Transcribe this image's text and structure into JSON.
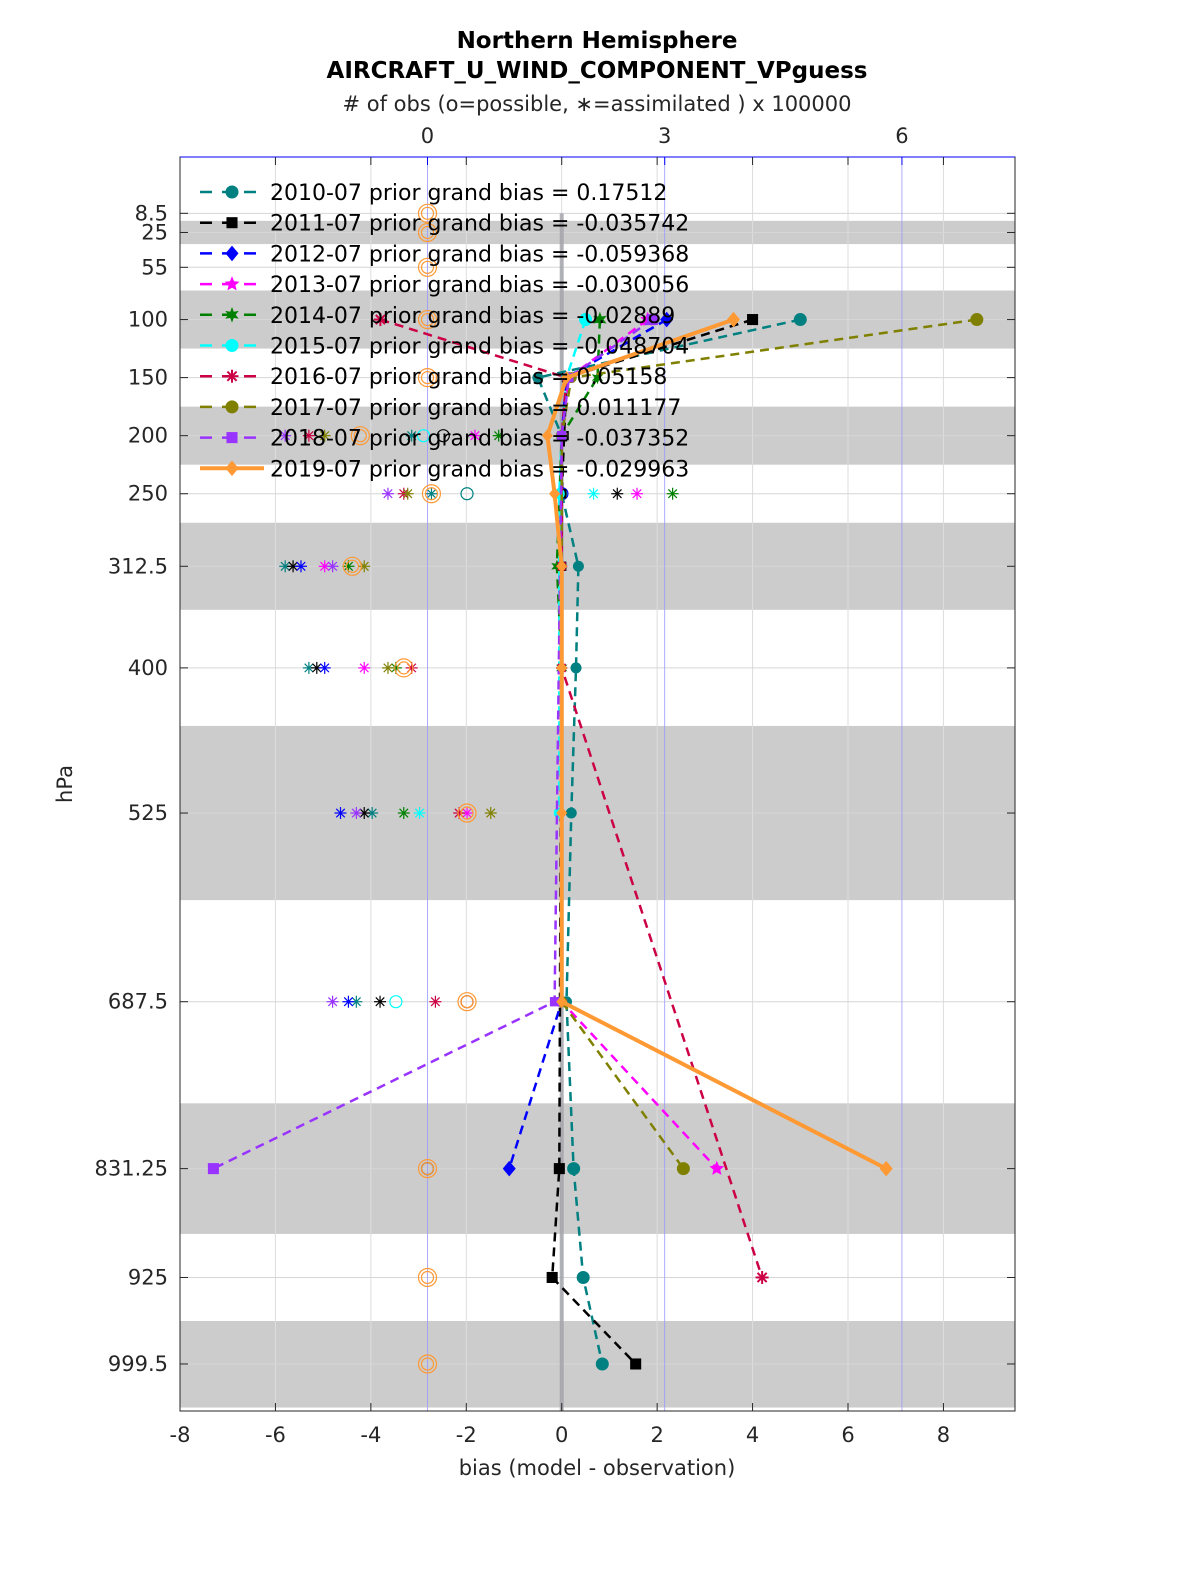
{
  "chart_data": {
    "type": "line",
    "title": "Northern Hemisphere",
    "subtitle": "AIRCRAFT_U_WIND_COMPONENT_VPguess",
    "top_axis_label": "# of obs (o=possible, ∗=assimilated ) x 100000",
    "top_axis_ticks": [
      "0",
      "3",
      "6"
    ],
    "top_axis_values": [
      0,
      3,
      6
    ],
    "top_axis_range": [
      -3.13,
      7.43
    ],
    "xlabel": "bias (model - observation)",
    "ylabel": "hPa",
    "xlim": [
      -8,
      9.5
    ],
    "x_ticks": [
      "-8",
      "-6",
      "-4",
      "-2",
      "0",
      "2",
      "4",
      "6",
      "8"
    ],
    "x_tick_values": [
      -8,
      -6,
      -4,
      -2,
      0,
      2,
      4,
      6,
      8
    ],
    "levels": [
      "8.5",
      "25",
      "55",
      "100",
      "150",
      "200",
      "250",
      "312.5",
      "400",
      "525",
      "687.5",
      "831.25",
      "925",
      "999.5"
    ],
    "level_values": [
      8.5,
      25,
      55,
      100,
      150,
      200,
      250,
      312.5,
      400,
      525,
      687.5,
      831.25,
      925,
      999.5
    ],
    "ylim": [
      -40,
      1040
    ],
    "shaded_bands": [
      [
        15,
        35
      ],
      [
        75,
        125
      ],
      [
        175,
        225
      ],
      [
        275,
        350
      ],
      [
        450,
        600
      ],
      [
        775,
        887.5
      ],
      [
        962.5,
        1037
      ]
    ],
    "legend_location": "top-left",
    "series": [
      {
        "name": "2010-07 prior grand bias = 0.17512",
        "color": "#008080",
        "marker": "circle",
        "dashed": true,
        "points": [
          [
            5.0,
            100
          ],
          [
            -0.5,
            150
          ],
          [
            0.0,
            200
          ],
          [
            0.0,
            250
          ],
          [
            0.35,
            312.5
          ],
          [
            0.3,
            400
          ],
          [
            0.2,
            525
          ],
          [
            0.1,
            687.5
          ],
          [
            0.25,
            831.25
          ],
          [
            0.45,
            925
          ],
          [
            0.85,
            999.5
          ]
        ]
      },
      {
        "name": "2011-07 prior grand bias = -0.035742",
        "color": "#000000",
        "marker": "square",
        "dashed": true,
        "points": [
          [
            4.0,
            100
          ],
          [
            0.1,
            150
          ],
          [
            0.05,
            200
          ],
          [
            0.0,
            250
          ],
          [
            0.0,
            312.5
          ],
          [
            -0.05,
            831.25
          ],
          [
            -0.2,
            925
          ],
          [
            1.55,
            999.5
          ]
        ]
      },
      {
        "name": "2012-07 prior grand bias = -0.059368",
        "color": "#0000ff",
        "marker": "diamond",
        "dashed": true,
        "points": [
          [
            2.2,
            100
          ],
          [
            0.1,
            150
          ],
          [
            0.0,
            200
          ],
          [
            0.0,
            687.5
          ],
          [
            -1.1,
            831.25
          ]
        ]
      },
      {
        "name": "2013-07 prior grand bias = -0.030056",
        "color": "#ff00ff",
        "marker": "star",
        "dashed": true,
        "points": [
          [
            1.8,
            100
          ],
          [
            0.15,
            150
          ],
          [
            0.0,
            200
          ],
          [
            0.0,
            687.5
          ],
          [
            3.25,
            831.25
          ]
        ]
      },
      {
        "name": "2014-07 prior grand bias = -0.02889",
        "color": "#008000",
        "marker": "hexagram",
        "dashed": true,
        "points": [
          [
            0.8,
            100
          ],
          [
            0.75,
            150
          ],
          [
            0.0,
            200
          ],
          [
            -0.1,
            312.5
          ],
          [
            0.0,
            400
          ]
        ]
      },
      {
        "name": "2015-07 prior grand bias = -0.048704",
        "color": "#00ffff",
        "marker": "hexagon",
        "dashed": true,
        "points": [
          [
            0.5,
            100
          ],
          [
            0.1,
            150
          ],
          [
            0.0,
            200
          ],
          [
            -0.05,
            250
          ],
          [
            -0.05,
            525
          ]
        ]
      },
      {
        "name": "2016-07 prior grand bias = 0.05158",
        "color": "#cc0044",
        "marker": "asterisk",
        "dashed": true,
        "points": [
          [
            -3.8,
            100
          ],
          [
            0.1,
            150
          ],
          [
            0.0,
            200
          ],
          [
            0.0,
            312.5
          ],
          [
            0.0,
            400
          ],
          [
            4.2,
            925
          ]
        ]
      },
      {
        "name": "2017-07 prior grand bias = 0.011177",
        "color": "#808000",
        "marker": "circle",
        "dashed": true,
        "points": [
          [
            8.7,
            100
          ],
          [
            0.2,
            150
          ],
          [
            0.0,
            200
          ],
          [
            0.0,
            687.5
          ],
          [
            2.55,
            831.25
          ]
        ]
      },
      {
        "name": "2018-07 prior grand bias = -0.037352",
        "color": "#9933ff",
        "marker": "square",
        "dashed": true,
        "points": [
          [
            1.9,
            100
          ],
          [
            0.15,
            150
          ],
          [
            0.0,
            200
          ],
          [
            -0.15,
            687.5
          ],
          [
            -7.3,
            831.25
          ]
        ]
      },
      {
        "name": "2019-07 prior grand bias = -0.029963",
        "color": "#ff9933",
        "marker": "diamond",
        "dashed": false,
        "points": [
          [
            3.6,
            100
          ],
          [
            0.1,
            150
          ],
          [
            -0.3,
            200
          ],
          [
            -0.15,
            250
          ],
          [
            0.0,
            312.5
          ],
          [
            0.0,
            400
          ],
          [
            0.0,
            525
          ],
          [
            0.0,
            687.5
          ],
          [
            6.8,
            831.25
          ]
        ]
      }
    ],
    "obs_counts_note": "possible (circle) and assimilated (asterisk) observation counts per level, top-axis units",
    "obs_counts": [
      {
        "color": "#008080",
        "values": [
          [
            250,
            0.5,
            "o"
          ],
          [
            200,
            -0.2,
            "*"
          ],
          [
            250,
            0.05,
            "*"
          ],
          [
            312.5,
            -1.8,
            "*"
          ],
          [
            400,
            -1.5,
            "*"
          ],
          [
            525,
            -0.7,
            "*"
          ],
          [
            687.5,
            -0.9,
            "*"
          ]
        ]
      },
      {
        "color": "#000000",
        "values": [
          [
            200,
            0.2,
            "o"
          ],
          [
            250,
            2.4,
            "*"
          ],
          [
            312.5,
            -1.7,
            "*"
          ],
          [
            400,
            -1.4,
            "*"
          ],
          [
            525,
            -0.8,
            "*"
          ],
          [
            687.5,
            -0.6,
            "*"
          ],
          [
            831.25,
            0.0,
            "o"
          ]
        ]
      },
      {
        "color": "#0000ff",
        "values": [
          [
            250,
            1.7,
            "o"
          ],
          [
            312.5,
            -1.6,
            "*"
          ],
          [
            400,
            -1.3,
            "*"
          ],
          [
            525,
            -1.1,
            "*"
          ],
          [
            687.5,
            -1.0,
            "*"
          ]
        ]
      },
      {
        "color": "#ff00ff",
        "values": [
          [
            200,
            0.6,
            "*"
          ],
          [
            250,
            2.65,
            "*"
          ],
          [
            312.5,
            -1.3,
            "*"
          ],
          [
            400,
            -0.8,
            "*"
          ],
          [
            525,
            0.5,
            "*"
          ],
          [
            687.5,
            0.5,
            "o"
          ]
        ]
      },
      {
        "color": "#008000",
        "values": [
          [
            200,
            0.9,
            "*"
          ],
          [
            250,
            3.1,
            "*"
          ],
          [
            312.5,
            -1.0,
            "*"
          ],
          [
            400,
            -0.4,
            "*"
          ],
          [
            525,
            -0.3,
            "*"
          ]
        ]
      },
      {
        "color": "#00ffff",
        "values": [
          [
            200,
            -0.05,
            "o"
          ],
          [
            250,
            2.1,
            "*"
          ],
          [
            525,
            -0.1,
            "*"
          ],
          [
            687.5,
            -0.4,
            "o"
          ]
        ]
      },
      {
        "color": "#cc0044",
        "values": [
          [
            200,
            -1.5,
            "*"
          ],
          [
            250,
            -0.3,
            "*"
          ],
          [
            400,
            -0.2,
            "*"
          ],
          [
            525,
            0.4,
            "*"
          ],
          [
            687.5,
            0.1,
            "*"
          ]
        ]
      },
      {
        "color": "#808000",
        "values": [
          [
            200,
            -1.3,
            "*"
          ],
          [
            250,
            -0.25,
            "*"
          ],
          [
            312.5,
            -0.8,
            "*"
          ],
          [
            400,
            -0.5,
            "*"
          ],
          [
            525,
            0.8,
            "*"
          ],
          [
            687.5,
            0.5,
            "o"
          ]
        ]
      },
      {
        "color": "#9933ff",
        "values": [
          [
            200,
            -1.8,
            "*"
          ],
          [
            250,
            -0.5,
            "*"
          ],
          [
            312.5,
            -1.2,
            "*"
          ],
          [
            525,
            -0.9,
            "*"
          ],
          [
            687.5,
            -1.2,
            "*"
          ]
        ]
      },
      {
        "color": "#ff9933",
        "values": [
          [
            8.5,
            0.0,
            "o"
          ],
          [
            25,
            0.0,
            "o"
          ],
          [
            55,
            0.0,
            "o"
          ],
          [
            100,
            0.0,
            "o"
          ],
          [
            150,
            0.0,
            "o"
          ],
          [
            200,
            -0.85,
            "o"
          ],
          [
            250,
            0.05,
            "o"
          ],
          [
            312.5,
            -0.95,
            "o"
          ],
          [
            400,
            -0.3,
            "o"
          ],
          [
            525,
            0.5,
            "o"
          ],
          [
            687.5,
            0.5,
            "o"
          ],
          [
            831.25,
            0.0,
            "o"
          ],
          [
            925,
            0.0,
            "o"
          ],
          [
            999.5,
            0.0,
            "o"
          ]
        ]
      }
    ]
  }
}
